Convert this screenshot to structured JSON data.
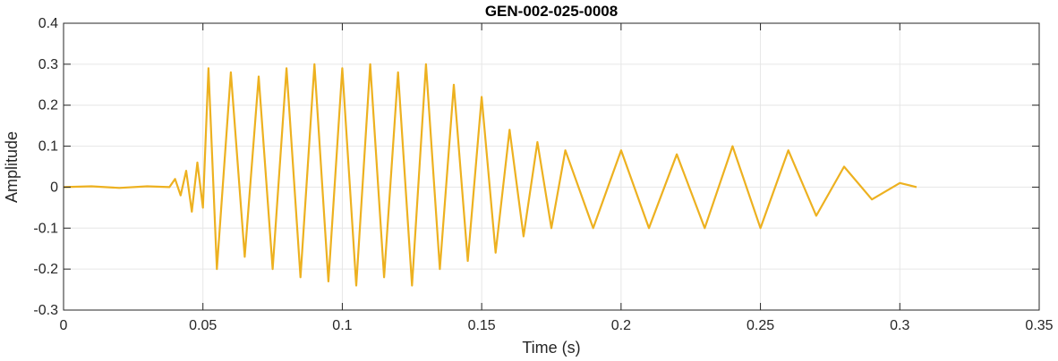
{
  "chart_data": {
    "type": "line",
    "title": "GEN-002-025-0008",
    "xlabel": "Time (s)",
    "ylabel": "Amplitude",
    "xlim": [
      0,
      0.35
    ],
    "ylim": [
      -0.3,
      0.4
    ],
    "xticks": [
      0,
      0.05,
      0.1,
      0.15,
      0.2,
      0.25,
      0.3,
      0.35
    ],
    "xtick_labels": [
      "0",
      "0.05",
      "0.1",
      "0.15",
      "0.2",
      "0.25",
      "0.3",
      "0.35"
    ],
    "yticks": [
      -0.3,
      -0.2,
      -0.1,
      0,
      0.1,
      0.2,
      0.3,
      0.4
    ],
    "ytick_labels": [
      "-0.3",
      "-0.2",
      "-0.1",
      "0",
      "0.1",
      "0.2",
      "0.3",
      "0.4"
    ],
    "grid": true,
    "colors": {
      "series": "#EDB120",
      "grid": "#e6e6e6",
      "axes": "#262626"
    },
    "series": [
      {
        "x": [
          0,
          0.01,
          0.02,
          0.03,
          0.038,
          0.04,
          0.042,
          0.044,
          0.046,
          0.048,
          0.05,
          0.052,
          0.055,
          0.06,
          0.065,
          0.07,
          0.075,
          0.08,
          0.085,
          0.09,
          0.095,
          0.1,
          0.105,
          0.11,
          0.115,
          0.12,
          0.125,
          0.13,
          0.135,
          0.14,
          0.145,
          0.15,
          0.155,
          0.16,
          0.165,
          0.17,
          0.175,
          0.18,
          0.19,
          0.2,
          0.21,
          0.22,
          0.23,
          0.24,
          0.25,
          0.26,
          0.27,
          0.28,
          0.29,
          0.3,
          0.306
        ],
        "values": [
          0.0,
          0.002,
          -0.002,
          0.002,
          0.0,
          0.02,
          -0.02,
          0.04,
          -0.06,
          0.06,
          -0.05,
          0.29,
          -0.2,
          0.28,
          -0.17,
          0.27,
          -0.2,
          0.29,
          -0.22,
          0.3,
          -0.23,
          0.29,
          -0.24,
          0.3,
          -0.22,
          0.28,
          -0.24,
          0.3,
          -0.2,
          0.25,
          -0.18,
          0.22,
          -0.16,
          0.14,
          -0.12,
          0.11,
          -0.1,
          0.09,
          -0.1,
          0.09,
          -0.1,
          0.08,
          -0.1,
          0.1,
          -0.1,
          0.09,
          -0.07,
          0.05,
          -0.03,
          0.01,
          0.0
        ]
      }
    ]
  }
}
